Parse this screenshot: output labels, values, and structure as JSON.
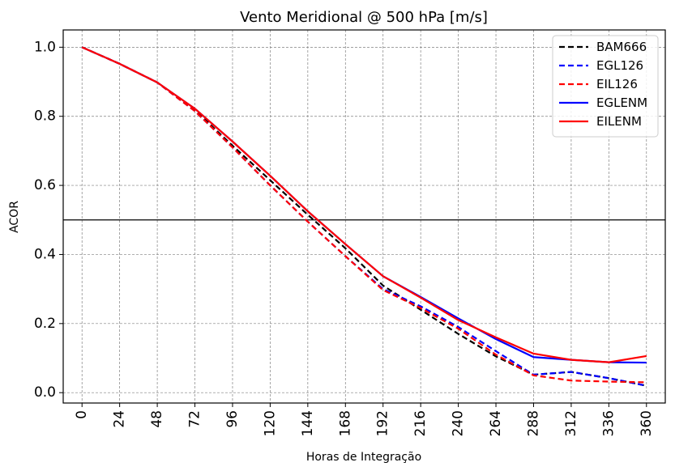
{
  "chart_data": {
    "type": "line",
    "title": "Vento Meridional @ 500 hPa [m/s]",
    "xlabel": "Horas de Integração",
    "ylabel": "ACOR",
    "x": [
      0,
      24,
      48,
      72,
      96,
      120,
      144,
      168,
      192,
      216,
      240,
      264,
      288,
      312,
      336,
      360
    ],
    "xticks": [
      "0",
      "24",
      "48",
      "72",
      "96",
      "120",
      "144",
      "168",
      "192",
      "216",
      "240",
      "264",
      "288",
      "312",
      "336",
      "360"
    ],
    "yticks": [
      "0.0",
      "0.2",
      "0.4",
      "0.6",
      "0.8",
      "1.0"
    ],
    "xlim": [
      -12,
      372
    ],
    "ylim": [
      -0.03,
      1.05
    ],
    "grid": true,
    "legend_position": "top-right",
    "reference_line": 0.5,
    "series": [
      {
        "name": "BAM666",
        "color": "#000000",
        "dash": true,
        "values": [
          1.0,
          0.952,
          0.898,
          0.818,
          0.715,
          0.615,
          0.515,
          0.418,
          0.31,
          0.24,
          0.17,
          0.105,
          0.052,
          0.06,
          0.042,
          0.02
        ]
      },
      {
        "name": "EGL126",
        "color": "#0000ff",
        "dash": true,
        "values": [
          1.0,
          0.952,
          0.898,
          0.815,
          0.71,
          0.6,
          0.495,
          0.395,
          0.3,
          0.25,
          0.19,
          0.12,
          0.052,
          0.06,
          0.042,
          0.02
        ]
      },
      {
        "name": "EIL126",
        "color": "#ff0000",
        "dash": true,
        "values": [
          1.0,
          0.952,
          0.898,
          0.815,
          0.71,
          0.6,
          0.495,
          0.395,
          0.297,
          0.245,
          0.185,
          0.11,
          0.05,
          0.035,
          0.032,
          0.03
        ]
      },
      {
        "name": "EGLENM",
        "color": "#0000ff",
        "dash": false,
        "values": [
          1.0,
          0.952,
          0.898,
          0.822,
          0.727,
          0.628,
          0.525,
          0.43,
          0.337,
          0.277,
          0.215,
          0.155,
          0.103,
          0.095,
          0.088,
          0.087
        ]
      },
      {
        "name": "EILENM",
        "color": "#ff0000",
        "dash": false,
        "values": [
          1.0,
          0.952,
          0.898,
          0.822,
          0.727,
          0.628,
          0.525,
          0.43,
          0.337,
          0.275,
          0.21,
          0.16,
          0.113,
          0.095,
          0.088,
          0.106
        ]
      }
    ]
  }
}
